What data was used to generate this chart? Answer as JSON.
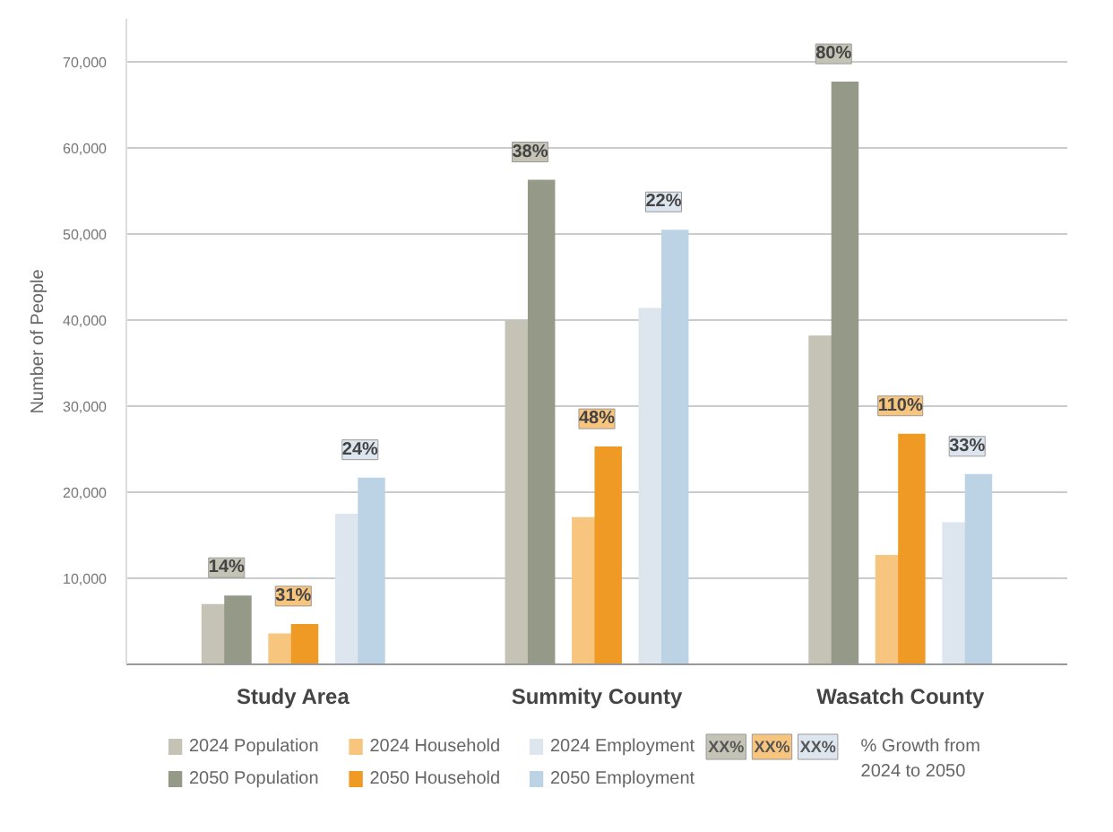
{
  "chart_data": {
    "type": "bar",
    "ylabel": "Number of People",
    "categories": [
      "Study Area",
      "Summity County",
      "Wasatch County"
    ],
    "series": [
      {
        "name": "2024 Population",
        "color": "#c5c3b5",
        "values": [
          7000,
          40000,
          38200
        ]
      },
      {
        "name": "2050 Population",
        "color": "#959a88",
        "values": [
          8000,
          56300,
          67700
        ]
      },
      {
        "name": "2024 Household",
        "color": "#f8c57f",
        "values": [
          3600,
          17100,
          12700
        ]
      },
      {
        "name": "2050 Household",
        "color": "#ee9a24",
        "values": [
          4700,
          25300,
          26800
        ]
      },
      {
        "name": "2024 Employment",
        "color": "#dde6ef",
        "values": [
          17500,
          41400,
          16500
        ]
      },
      {
        "name": "2050 Employment",
        "color": "#bcd3e5",
        "values": [
          21700,
          50500,
          22100
        ]
      }
    ],
    "ylim": [
      0,
      75000
    ],
    "yticks": [
      {
        "value": 10000,
        "label": "10,000"
      },
      {
        "value": 20000,
        "label": "20,000"
      },
      {
        "value": 30000,
        "label": "30,000"
      },
      {
        "value": 40000,
        "label": "40,000"
      },
      {
        "value": 50000,
        "label": "50,000"
      },
      {
        "value": 60000,
        "label": "60,000"
      },
      {
        "value": 70000,
        "label": "70,000"
      }
    ],
    "grid": "y",
    "legend": "bottom",
    "annotations": [
      "14%",
      "31%",
      "24%",
      "38%",
      "48%",
      "22%",
      "80%",
      "110%",
      "33%",
      "XX%",
      "XX%",
      "XX%",
      "% Growth from 2024 to 2050"
    ]
  }
}
